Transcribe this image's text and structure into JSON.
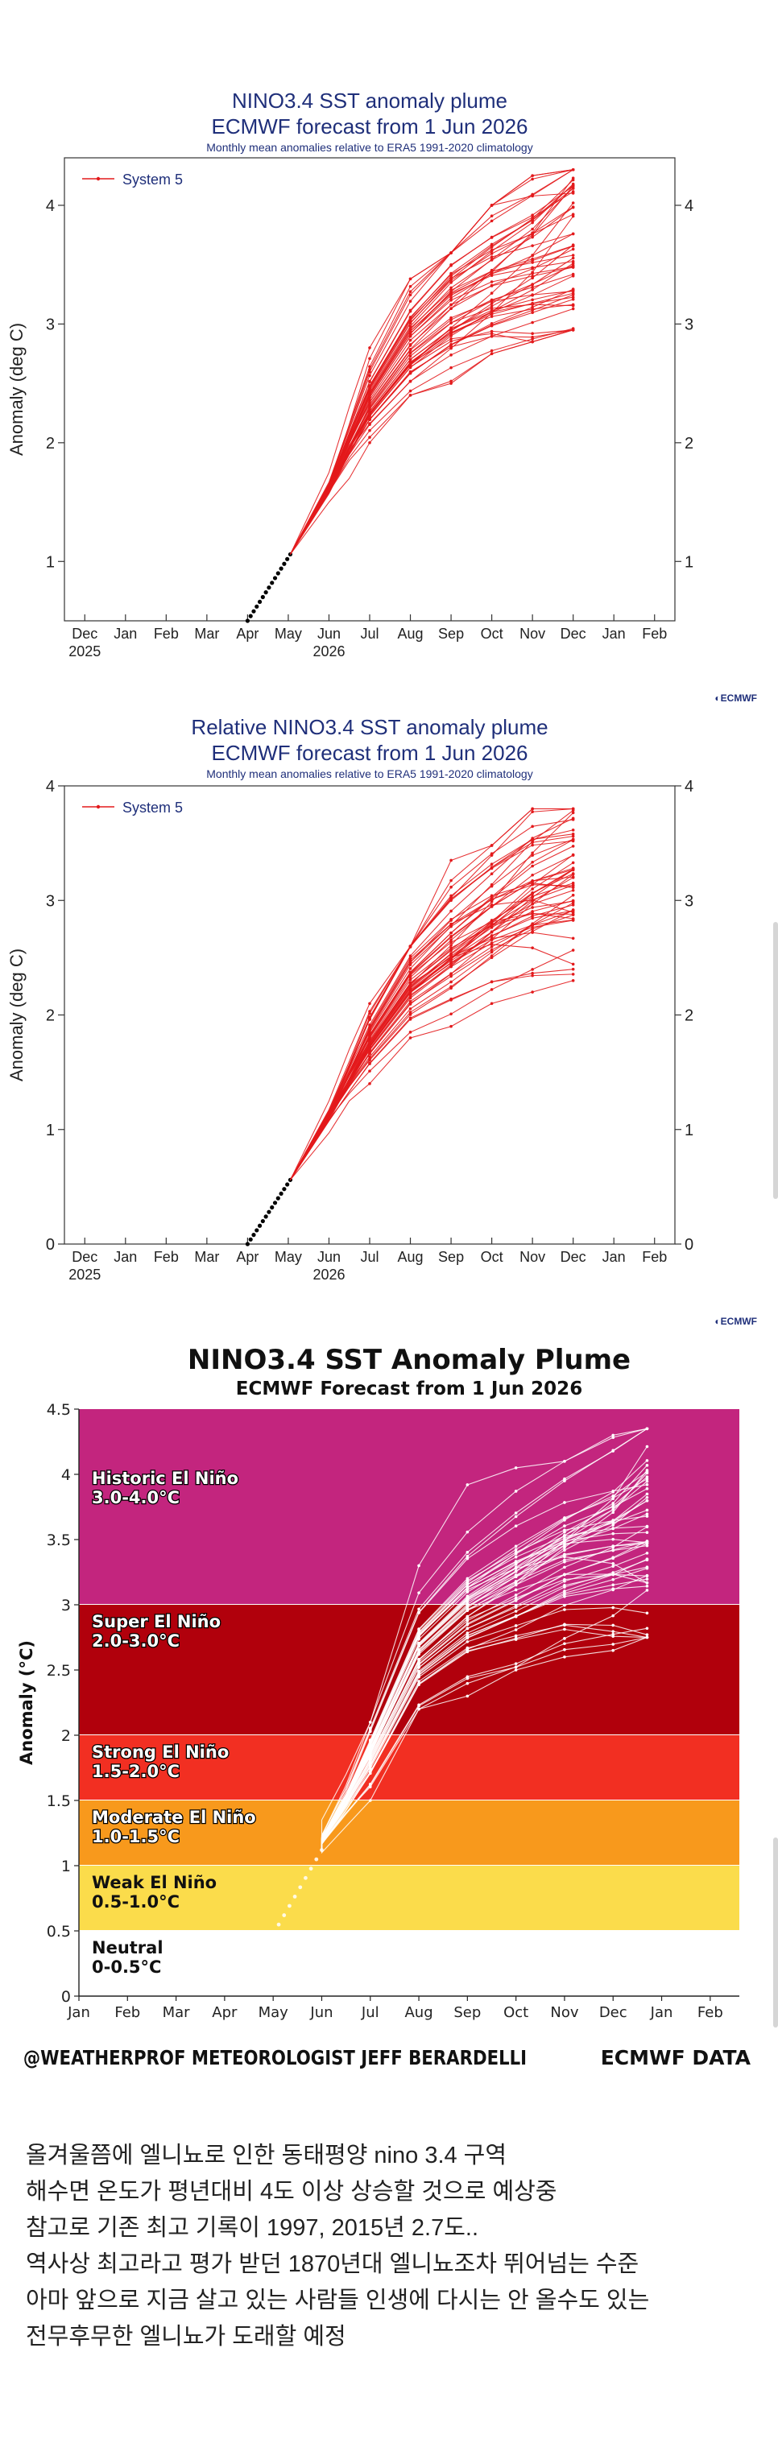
{
  "chart_data": [
    {
      "type": "line",
      "title": "NINO3.4 SST anomaly plume",
      "subtitle": "ECMWF forecast from 1 Jun 2026",
      "note": "Monthly mean anomalies relative to ERA5 1991-2020 climatology",
      "ylabel": "Anomaly (deg C)",
      "ylim": [
        0.5,
        4.4
      ],
      "yticks": [
        1,
        2,
        3,
        4
      ],
      "categories": [
        "Dec",
        "Jan",
        "Feb",
        "Mar",
        "Apr",
        "May",
        "Jun",
        "Jul",
        "Aug",
        "Sep",
        "Oct",
        "Nov",
        "Dec",
        "Jan",
        "Feb"
      ],
      "year_labels": [
        {
          "at": "Dec",
          "text": "2025"
        },
        {
          "at": "Jun",
          "text": "2026"
        }
      ],
      "legend": {
        "label": "System 5",
        "position": "top-left"
      },
      "logo": "ECMWF",
      "series_color": "#e31a1c",
      "observed": {
        "x_start": 4.0,
        "x_end": 5.05,
        "y_start": 0.5,
        "y_end": 1.06
      },
      "ensemble": {
        "members": 51,
        "x": [
          6.0,
          6.5,
          7.0,
          8.0,
          9.0,
          10.0,
          11.0,
          12.0
        ],
        "mean": [
          1.62,
          2.0,
          2.35,
          2.84,
          3.15,
          3.35,
          3.5,
          3.68
        ],
        "spread": [
          0.08,
          0.18,
          0.26,
          0.35,
          0.4,
          0.42,
          0.45,
          0.52
        ],
        "min": [
          1.5,
          1.7,
          2.0,
          2.4,
          2.5,
          2.75,
          2.85,
          2.95
        ],
        "max": [
          1.75,
          2.3,
          2.8,
          3.38,
          3.6,
          4.0,
          4.25,
          4.3
        ]
      },
      "grid": false
    },
    {
      "type": "line",
      "title": "Relative NINO3.4 SST anomaly plume",
      "subtitle": "ECMWF forecast from 1 Jun 2026",
      "note": "Monthly mean anomalies relative to ERA5 1991-2020 climatology",
      "ylabel": "Anomaly (deg C)",
      "ylim": [
        0,
        4
      ],
      "yticks": [
        0,
        1,
        2,
        3,
        4
      ],
      "categories": [
        "Dec",
        "Jan",
        "Feb",
        "Mar",
        "Apr",
        "May",
        "Jun",
        "Jul",
        "Aug",
        "Sep",
        "Oct",
        "Nov",
        "Dec",
        "Jan",
        "Feb"
      ],
      "year_labels": [
        {
          "at": "Dec",
          "text": "2025"
        },
        {
          "at": "Jun",
          "text": "2026"
        }
      ],
      "legend": {
        "label": "System 5",
        "position": "top-left"
      },
      "logo": "ECMWF",
      "series_color": "#e31a1c",
      "observed": {
        "x_start": 4.0,
        "x_end": 5.05,
        "y_start": 0.0,
        "y_end": 0.56
      },
      "ensemble": {
        "members": 51,
        "x": [
          6.0,
          6.5,
          7.0,
          8.0,
          9.0,
          10.0,
          11.0,
          12.0
        ],
        "mean": [
          1.12,
          1.45,
          1.78,
          2.3,
          2.6,
          2.85,
          3.05,
          3.15
        ],
        "spread": [
          0.08,
          0.16,
          0.22,
          0.3,
          0.36,
          0.38,
          0.42,
          0.42
        ],
        "min": [
          0.97,
          1.25,
          1.4,
          1.8,
          1.9,
          2.1,
          2.2,
          2.3
        ],
        "max": [
          1.25,
          1.7,
          2.1,
          2.6,
          3.35,
          3.48,
          3.8,
          3.8
        ]
      },
      "grid": false
    },
    {
      "type": "line",
      "title": "NINO3.4 SST Anomaly Plume",
      "subtitle": "ECMWF Forecast from 1 Jun 2026",
      "ylabel": "Anomaly (°C)",
      "ylim": [
        0,
        4.5
      ],
      "yticks": [
        "0",
        "0.5",
        "1",
        "1.5",
        "2",
        "2.5",
        "3",
        "3.5",
        "4",
        "4.5"
      ],
      "categories": [
        "Jan",
        "Feb",
        "Mar",
        "Apr",
        "May",
        "Jun",
        "Jul",
        "Aug",
        "Sep",
        "Oct",
        "Nov",
        "Dec",
        "Jan",
        "Feb"
      ],
      "bands": [
        {
          "label": "Historic El Niño",
          "range_label": "3.0-4.0°C",
          "from": 3.0,
          "to": 4.5,
          "color": "#c3257e"
        },
        {
          "label": "Super El Niño",
          "range_label": "2.0-3.0°C",
          "from": 2.0,
          "to": 3.0,
          "color": "#b1000c"
        },
        {
          "label": "Strong El Niño",
          "range_label": "1.5-2.0°C",
          "from": 1.5,
          "to": 2.0,
          "color": "#f22f22"
        },
        {
          "label": "Moderate El Niño",
          "range_label": "1.0-1.5°C",
          "from": 1.0,
          "to": 1.5,
          "color": "#f8991c"
        },
        {
          "label": "Weak El Niño",
          "range_label": "0.5-1.0°C",
          "from": 0.5,
          "to": 1.0,
          "color": "#fbdc4b"
        },
        {
          "label": "Neutral",
          "range_label": "0-0.5°C",
          "from": 0.0,
          "to": 0.5,
          "color": "#ffffff"
        }
      ],
      "series_color": "#ffffff",
      "observed": {
        "x_start": 3.45,
        "x_end": 5.0,
        "y_start": 0.12,
        "y_end": 1.12
      },
      "ensemble": {
        "members": 51,
        "x": [
          5.0,
          5.5,
          6.0,
          7.0,
          8.0,
          9.0,
          10.0,
          11.0,
          11.7
        ],
        "mean": [
          1.2,
          1.5,
          1.85,
          2.62,
          2.95,
          3.15,
          3.35,
          3.48,
          3.6
        ],
        "spread": [
          0.06,
          0.12,
          0.2,
          0.28,
          0.32,
          0.36,
          0.38,
          0.42,
          0.48
        ],
        "min": [
          1.1,
          1.3,
          1.5,
          2.2,
          2.3,
          2.5,
          2.6,
          2.65,
          2.75
        ],
        "max": [
          1.35,
          1.7,
          2.1,
          3.3,
          3.92,
          4.05,
          4.1,
          4.3,
          4.35
        ]
      },
      "footer_left": "@WEATHERPROF METEOROLOGIST JEFF BERARDELLI",
      "footer_right": "ECMWF DATA",
      "grid": false
    }
  ],
  "caption": {
    "lines": [
      "올겨울쯤에 엘니뇨로 인한 동태평양 nino 3.4 구역",
      "해수면 온도가 평년대비 4도 이상 상승할 것으로 예상중",
      "참고로 기존 최고 기록이 1997, 2015년 2.7도..",
      "역사상 최고라고 평가 받던 1870년대 엘니뇨조차 뛰어넘는 수준",
      "아마 앞으로 지금 살고 있는 사람들 인생에 다시는 안 올수도 있는",
      "전무후무한 엘니뇨가 도래할 예정"
    ]
  }
}
